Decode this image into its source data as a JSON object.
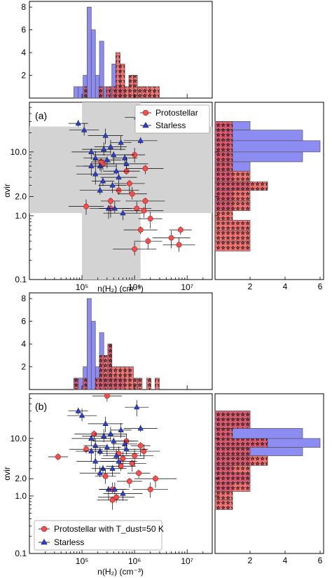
{
  "panel_a": {
    "label": "(a)",
    "legend": [
      "Protostellar",
      "Starless"
    ],
    "xlabel": "n(H₂) (cm⁻³)",
    "ylabel": "αvir",
    "xticklabels": [
      "10⁵",
      "10⁶",
      "10⁷"
    ],
    "yticklabels": [
      "10.0",
      "2.0",
      "1.0",
      "0.1"
    ]
  },
  "panel_b": {
    "label": "(b)",
    "legend": [
      "Protostellar with T_dust=50 K",
      "Starless"
    ],
    "xlabel": "n(H₂) (cm⁻³)",
    "ylabel": "αvir",
    "xticklabels": [
      "10⁵",
      "10⁶",
      "10⁷"
    ],
    "yticklabels": [
      "10.0",
      "2.0",
      "1.0",
      "0.1"
    ]
  },
  "hist_ticks_top": [
    "2",
    "4",
    "6",
    "8"
  ],
  "hist_ticks_right": [
    "2",
    "4",
    "6"
  ],
  "colors": {
    "protostellar": "#f05050",
    "starless": "#7878f0",
    "overlap": "#7b3aa8",
    "shade": "#d3d3d3"
  },
  "chart_data": [
    {
      "type": "scatter",
      "panel": "a",
      "xscale": "log",
      "yscale": "log",
      "xlim": [
        10000,
        30000000
      ],
      "ylim": [
        0.1,
        60
      ],
      "xlabel": "n(H₂) (cm⁻³)",
      "ylabel": "αvir",
      "shaded_regions": {
        "x_range": [
          100000,
          1300000
        ],
        "y_range": [
          1.1,
          25
        ]
      },
      "series": [
        {
          "name": "Protostellar",
          "marker": "circle",
          "points": [
            [
              350000,
              1.7
            ],
            [
              900000,
              2.2
            ],
            [
              1600000,
              1.7
            ],
            [
              2000000,
              0.9
            ],
            [
              1300000,
              0.6
            ],
            [
              1000000,
              0.3
            ],
            [
              1800000,
              0.4
            ],
            [
              5000000,
              0.45
            ],
            [
              7500000,
              0.6
            ],
            [
              7000000,
              0.35
            ],
            [
              350000,
              1.3
            ],
            [
              700000,
              5.0
            ],
            [
              1600000,
              5.5
            ],
            [
              1000000,
              9.0
            ],
            [
              800000,
              3.2
            ],
            [
              500000,
              2.5
            ],
            [
              250000,
              6.5
            ],
            [
              120000,
              1.4
            ],
            [
              230000,
              7.0
            ],
            [
              1100000,
              1.3
            ],
            [
              1500000,
              1.2
            ]
          ]
        },
        {
          "name": "Starless",
          "marker": "triangle",
          "points": [
            [
              85000,
              28
            ],
            [
              110000,
              22
            ],
            [
              150000,
              10
            ],
            [
              180000,
              8
            ],
            [
              220000,
              6
            ],
            [
              260000,
              11
            ],
            [
              300000,
              7.5
            ],
            [
              180000,
              4.5
            ],
            [
              250000,
              3.5
            ],
            [
              350000,
              12
            ],
            [
              400000,
              9
            ],
            [
              450000,
              5
            ],
            [
              500000,
              4
            ],
            [
              550000,
              14
            ],
            [
              150000,
              6
            ],
            [
              220000,
              2.5
            ],
            [
              650000,
              8
            ],
            [
              280000,
              18
            ],
            [
              320000,
              1.3
            ],
            [
              420000,
              1.3
            ],
            [
              600000,
              1.1
            ],
            [
              1100000,
              35
            ],
            [
              1300000,
              15
            ],
            [
              700000,
              6.5
            ],
            [
              380000,
              3.0
            ]
          ]
        }
      ]
    },
    {
      "type": "bar",
      "panel": "a-top-histogram",
      "xscale": "log",
      "ylim": [
        0,
        8.5
      ],
      "series": [
        {
          "name": "Starless",
          "bins": [
            [
              70000,
              85000,
              1
            ],
            [
              85000,
              105000,
              1
            ],
            [
              105000,
              125000,
              2
            ],
            [
              125000,
              150000,
              8
            ],
            [
              150000,
              180000,
              6
            ],
            [
              180000,
              215000,
              2
            ],
            [
              215000,
              260000,
              5
            ],
            [
              260000,
              310000,
              1
            ],
            [
              310000,
              370000,
              1
            ],
            [
              370000,
              450000,
              3
            ],
            [
              450000,
              540000,
              1
            ],
            [
              540000,
              650000,
              1
            ]
          ]
        },
        {
          "name": "Protostellar",
          "bins": [
            [
              110000,
              125000,
              1
            ],
            [
              210000,
              255000,
              1
            ],
            [
              290000,
              350000,
              1
            ],
            [
              370000,
              440000,
              1
            ],
            [
              440000,
              530000,
              4
            ],
            [
              530000,
              650000,
              3
            ],
            [
              650000,
              780000,
              1
            ],
            [
              780000,
              950000,
              2
            ],
            [
              950000,
              1130000,
              2
            ],
            [
              1150000,
              1390000,
              1
            ],
            [
              1390000,
              1650000,
              1
            ],
            [
              1650000,
              2000000,
              1
            ],
            [
              2000000,
              2400000,
              1
            ],
            [
              2400000,
              2950000,
              1
            ]
          ]
        }
      ]
    },
    {
      "type": "bar",
      "panel": "a-right-histogram",
      "orientation": "horizontal",
      "yscale": "log",
      "xlim": [
        0,
        6.2
      ],
      "series": [
        {
          "name": "Starless",
          "bins": [
            [
              22,
              30,
              2
            ],
            [
              15,
              22,
              5
            ],
            [
              10,
              15,
              6
            ],
            [
              7,
              10,
              5
            ],
            [
              5,
              7,
              2
            ],
            [
              3.4,
              5,
              1
            ],
            [
              2.5,
              3.4,
              2
            ],
            [
              1.7,
              2.5,
              1
            ],
            [
              1.2,
              1.7,
              1
            ]
          ]
        },
        {
          "name": "Protostellar",
          "bins": [
            [
              22,
              30,
              1
            ],
            [
              15,
              22,
              1
            ],
            [
              10,
              15,
              1
            ],
            [
              7,
              10,
              1
            ],
            [
              5,
              7,
              1
            ],
            [
              3.4,
              5,
              2
            ],
            [
              2.5,
              3.4,
              3
            ],
            [
              1.7,
              2.5,
              2
            ],
            [
              1.2,
              1.7,
              2
            ],
            [
              0.85,
              1.2,
              1
            ],
            [
              0.58,
              0.85,
              2
            ],
            [
              0.4,
              0.58,
              2
            ],
            [
              0.28,
              0.4,
              2
            ]
          ]
        }
      ]
    },
    {
      "type": "scatter",
      "panel": "b",
      "xscale": "log",
      "yscale": "log",
      "xlim": [
        10000,
        30000000
      ],
      "ylim": [
        0.1,
        60
      ],
      "xlabel": "n(H₂) (cm⁻³)",
      "ylabel": "αvir",
      "series": [
        {
          "name": "Protostellar with T_dust=50 K",
          "marker": "circle",
          "points": [
            [
              35000,
              4.8
            ],
            [
              300000,
              55
            ],
            [
              170000,
              12
            ],
            [
              700000,
              9
            ],
            [
              120000,
              6.5
            ],
            [
              600000,
              4.5
            ],
            [
              900000,
              3.7
            ],
            [
              1000000,
              5.0
            ],
            [
              1200000,
              2.5
            ],
            [
              1500000,
              6
            ],
            [
              2500000,
              2.0
            ],
            [
              380000,
              1.3
            ],
            [
              450000,
              0.95
            ],
            [
              280000,
              2.2
            ],
            [
              380000,
              0.85
            ],
            [
              500000,
              5.5
            ],
            [
              800000,
              1.8
            ],
            [
              2000000,
              1.3
            ],
            [
              1300000,
              7.5
            ],
            [
              550000,
              3.3
            ]
          ]
        },
        {
          "name": "Starless",
          "marker": "triangle",
          "points": [
            [
              85000,
              30
            ],
            [
              100000,
              25
            ],
            [
              150000,
              10
            ],
            [
              180000,
              7.5
            ],
            [
              220000,
              6
            ],
            [
              260000,
              11
            ],
            [
              300000,
              7
            ],
            [
              180000,
              4
            ],
            [
              250000,
              3
            ],
            [
              350000,
              12
            ],
            [
              400000,
              9
            ],
            [
              450000,
              5
            ],
            [
              500000,
              4
            ],
            [
              550000,
              14
            ],
            [
              150000,
              6
            ],
            [
              220000,
              2.5
            ],
            [
              650000,
              8
            ],
            [
              280000,
              18
            ],
            [
              320000,
              1.3
            ],
            [
              420000,
              1.3
            ],
            [
              600000,
              1.1
            ],
            [
              1100000,
              35
            ],
            [
              1300000,
              15
            ],
            [
              700000,
              6.5
            ],
            [
              380000,
              3.0
            ]
          ]
        }
      ]
    },
    {
      "type": "bar",
      "panel": "b-top-histogram",
      "xscale": "log",
      "ylim": [
        0,
        8.5
      ],
      "series": [
        {
          "name": "Starless",
          "bins": [
            [
              70000,
              85000,
              1
            ],
            [
              85000,
              105000,
              1
            ],
            [
              105000,
              125000,
              2
            ],
            [
              125000,
              150000,
              8
            ],
            [
              150000,
              180000,
              6
            ],
            [
              180000,
              215000,
              2
            ],
            [
              215000,
              260000,
              5
            ],
            [
              260000,
              310000,
              1
            ],
            [
              310000,
              370000,
              4
            ],
            [
              370000,
              450000,
              1
            ],
            [
              450000,
              540000,
              1
            ],
            [
              540000,
              650000,
              1
            ]
          ]
        },
        {
          "name": "Protostellar with T_dust=50 K",
          "bins": [
            [
              70000,
              85000,
              1
            ],
            [
              105000,
              125000,
              1
            ],
            [
              180000,
              215000,
              1
            ],
            [
              215000,
              260000,
              3
            ],
            [
              260000,
              310000,
              3
            ],
            [
              310000,
              370000,
              4
            ],
            [
              370000,
              450000,
              2
            ],
            [
              450000,
              540000,
              2
            ],
            [
              540000,
              650000,
              2
            ],
            [
              650000,
              780000,
              2
            ],
            [
              780000,
              950000,
              2
            ],
            [
              950000,
              1130000,
              1
            ],
            [
              1150000,
              1390000,
              1
            ],
            [
              1700000,
              2050000,
              1
            ],
            [
              2450000,
              2950000,
              1
            ]
          ]
        }
      ]
    },
    {
      "type": "bar",
      "panel": "b-right-histogram",
      "orientation": "horizontal",
      "yscale": "log",
      "xlim": [
        0,
        6.2
      ],
      "series": [
        {
          "name": "Starless",
          "bins": [
            [
              22,
              30,
              2
            ],
            [
              15,
              22,
              2
            ],
            [
              10,
              15,
              5
            ],
            [
              7,
              10,
              6
            ],
            [
              5,
              7,
              5
            ],
            [
              3.4,
              5,
              2
            ],
            [
              2.5,
              3.4,
              1
            ],
            [
              1.7,
              2.5,
              2
            ],
            [
              1.2,
              1.7,
              1
            ]
          ]
        },
        {
          "name": "Protostellar with T_dust=50 K",
          "bins": [
            [
              22,
              30,
              2
            ],
            [
              15,
              22,
              2
            ],
            [
              10,
              15,
              1
            ],
            [
              7,
              10,
              3
            ],
            [
              5,
              7,
              2
            ],
            [
              3.4,
              5,
              3
            ],
            [
              2.5,
              3.4,
              2
            ],
            [
              1.7,
              2.5,
              2
            ],
            [
              1.2,
              1.7,
              2
            ],
            [
              0.85,
              1.2,
              1
            ],
            [
              0.58,
              0.85,
              1
            ]
          ]
        }
      ]
    }
  ]
}
